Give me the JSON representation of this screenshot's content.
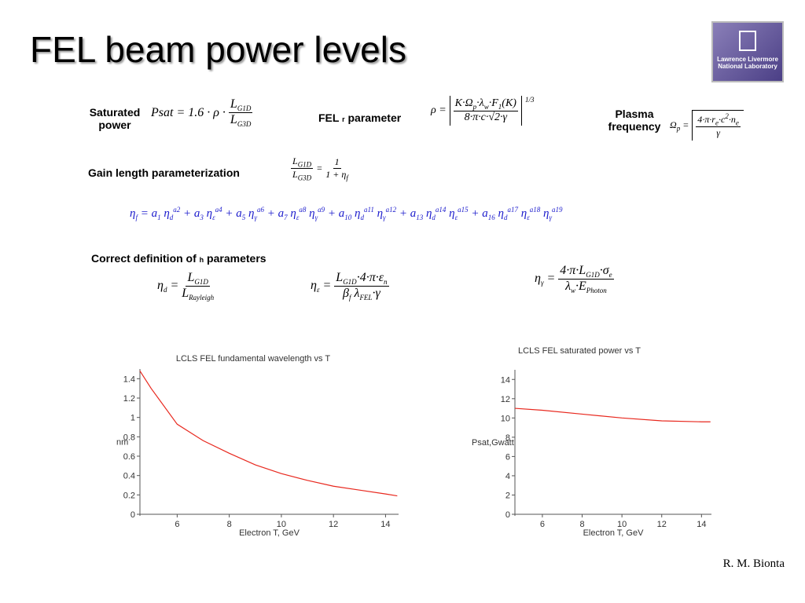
{
  "title": "FEL beam power levels",
  "logo": {
    "lines": [
      "Lawrence Livermore",
      "National Laboratory"
    ]
  },
  "author": "R. M. Bionta",
  "labels": {
    "saturated": [
      "Saturated",
      "power"
    ],
    "rho": [
      "FEL ",
      "r",
      " parameter"
    ],
    "plasma": [
      "Plasma",
      "frequency"
    ],
    "gain": "Gain length parameterization",
    "correct": [
      "Correct definition of ",
      "h",
      " parameters"
    ]
  },
  "equations": {
    "saturated": {
      "lhs": [
        "Psat = 1.6 · ρ ·"
      ],
      "num": [
        "L",
        {
          "sub": "G1D"
        }
      ],
      "den": [
        "L",
        {
          "sub": "G3D"
        }
      ]
    },
    "rho": {
      "lhs": [
        "ρ ="
      ],
      "num": [
        "K·Ω",
        {
          "sub": "p"
        },
        "·λ",
        {
          "sub": "w"
        },
        "·F",
        {
          "sub": "1"
        },
        "(K)"
      ],
      "den": [
        "8·π·c·√2·γ"
      ],
      "exp": "1/3"
    },
    "plasma": {
      "lhs": [
        "Ω",
        {
          "sub": "p"
        },
        " ="
      ],
      "num": [
        "4·π·r",
        {
          "sub": "e"
        },
        "·c",
        {
          "sup": "2"
        },
        "·n",
        {
          "sub": "e"
        }
      ],
      "den": [
        "γ"
      ]
    },
    "gain": {
      "lhsnum": [
        "L",
        {
          "sub": "G1D"
        }
      ],
      "lhsden": [
        "L",
        {
          "sub": "G3D"
        }
      ],
      "num": [
        "1"
      ],
      "den": [
        "1 + η",
        {
          "sub": "f"
        }
      ]
    },
    "eta_f": [
      "η",
      {
        "sub": "f"
      },
      " = a",
      {
        "sub": "1"
      },
      " η",
      {
        "sub": "d"
      },
      {
        "sup": "a2"
      },
      " + a",
      {
        "sub": "3"
      },
      " η",
      {
        "sub": "ε"
      },
      {
        "sup": "a4"
      },
      " + a",
      {
        "sub": "5"
      },
      " η",
      {
        "sub": "γ"
      },
      {
        "sup": "a6"
      },
      " + a",
      {
        "sub": "7"
      },
      " η",
      {
        "sub": "ε"
      },
      {
        "sup": "a8"
      },
      " η",
      {
        "sub": "γ"
      },
      {
        "sup": "a9"
      },
      " + a",
      {
        "sub": "10"
      },
      " η",
      {
        "sub": "d"
      },
      {
        "sup": "a11"
      },
      " η",
      {
        "sub": "γ"
      },
      {
        "sup": "a12"
      },
      " + a",
      {
        "sub": "13"
      },
      " η",
      {
        "sub": "d"
      },
      {
        "sup": "a14"
      },
      " η",
      {
        "sub": "ε"
      },
      {
        "sup": "a15"
      },
      " + a",
      {
        "sub": "16"
      },
      " η",
      {
        "sub": "d"
      },
      {
        "sup": "a17"
      },
      " η",
      {
        "sub": "ε"
      },
      {
        "sup": "a18"
      },
      " η",
      {
        "sub": "γ"
      },
      {
        "sup": "a19"
      }
    ],
    "eta_d": {
      "lhs": [
        "η",
        {
          "sub": "d"
        },
        " ="
      ],
      "num": [
        "L",
        {
          "sub": "G1D"
        }
      ],
      "den": [
        "L",
        {
          "sub": "Rayleigh"
        }
      ]
    },
    "eta_e": {
      "lhs": [
        "η",
        {
          "sub": "ε"
        },
        " ="
      ],
      "num": [
        "L",
        {
          "sub": "G1D"
        },
        "·4·π·ε",
        {
          "sub": "n"
        }
      ],
      "den": [
        "β",
        {
          "sub": "f"
        },
        " λ",
        {
          "sub": "FEL"
        },
        "·γ"
      ]
    },
    "eta_g": {
      "lhs": [
        "η",
        {
          "sub": "γ"
        },
        " ="
      ],
      "num": [
        "4·π·L",
        {
          "sub": "G1D"
        },
        "·σ",
        {
          "sub": "e"
        }
      ],
      "den": [
        "λ",
        {
          "sub": "w"
        },
        "·E",
        {
          "sub": "Photon"
        }
      ]
    }
  },
  "chart_data": [
    {
      "type": "line",
      "title": "LCLS FEL fundamental wavelength vs T",
      "x_label": "Electron T, GeV",
      "y_label": "nm",
      "x": [
        4.57,
        5,
        6,
        7,
        8,
        9,
        10,
        11,
        12,
        13,
        14,
        14.45
      ],
      "series": [
        {
          "name": "wavelength",
          "color": "#e8281e",
          "values": [
            1.48,
            1.3,
            0.93,
            0.76,
            0.63,
            0.51,
            0.42,
            0.35,
            0.29,
            0.25,
            0.21,
            0.19
          ]
        }
      ],
      "xlim": [
        4.57,
        14.5
      ],
      "ylim": [
        0,
        1.5
      ],
      "xticks": [
        6,
        8,
        10,
        12,
        14
      ],
      "yticks": [
        0,
        0.2,
        0.4,
        0.6,
        0.8,
        1,
        1.2,
        1.4
      ]
    },
    {
      "type": "line",
      "title": "LCLS FEL saturated power vs T",
      "x_label": "Electron T, GeV",
      "y_label": "Psat,Gwatt",
      "x": [
        4.62,
        6,
        8,
        10,
        12,
        14,
        14.45
      ],
      "series": [
        {
          "name": "Psat",
          "color": "#e8281e",
          "values": [
            11,
            10.8,
            10.4,
            10,
            9.7,
            9.6,
            9.6
          ]
        }
      ],
      "xlim": [
        4.62,
        14.5
      ],
      "ylim": [
        0,
        15
      ],
      "xticks": [
        6,
        8,
        10,
        12,
        14
      ],
      "yticks": [
        0,
        2,
        4,
        6,
        8,
        10,
        12,
        14
      ]
    }
  ]
}
